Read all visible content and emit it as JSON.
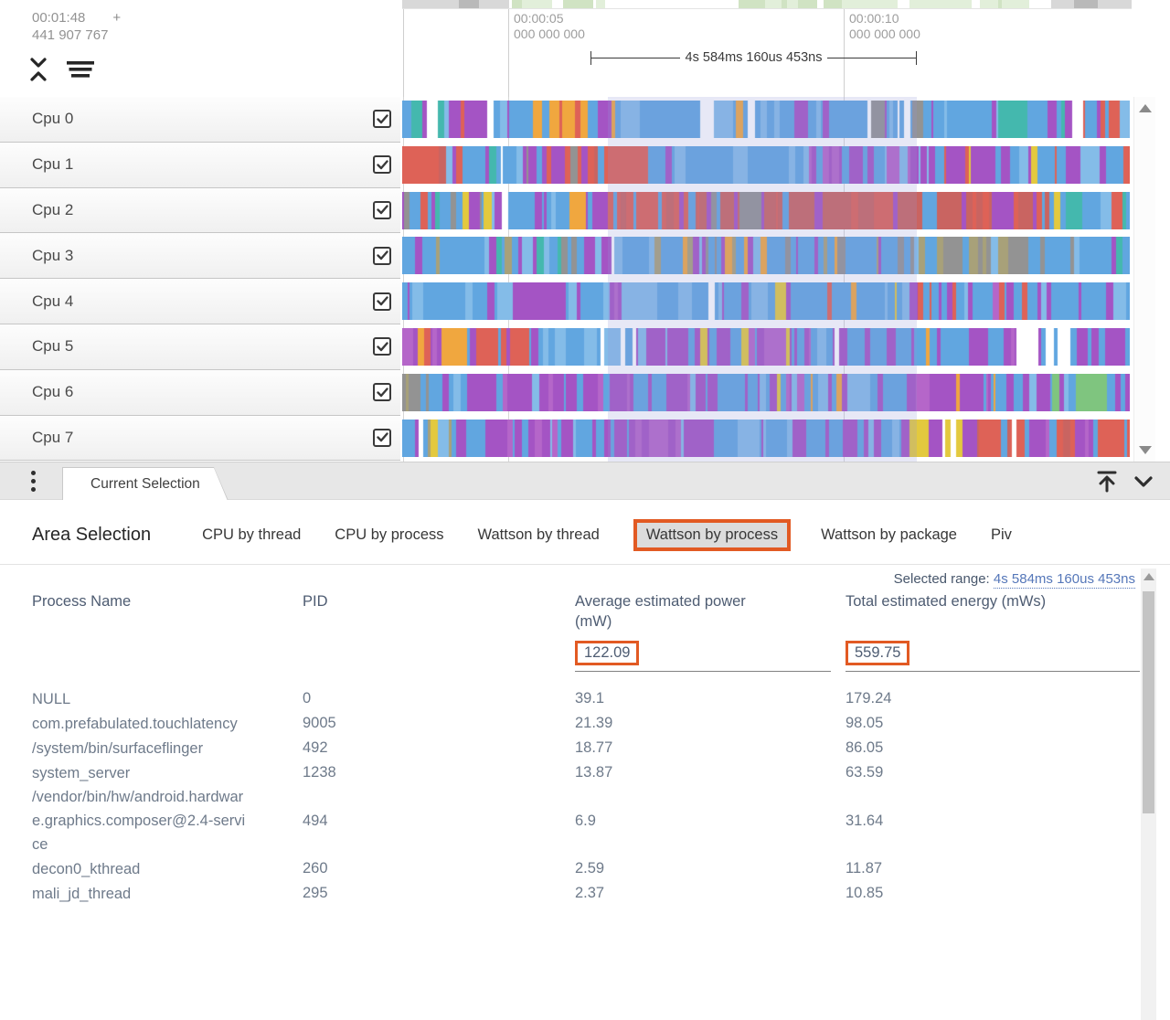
{
  "timeline": {
    "cursor_time": "00:01:48",
    "cursor_plus": "+",
    "cursor_ns": "441 907 767",
    "markers": [
      {
        "time": "00:00:05",
        "ns": "000 000 000"
      },
      {
        "time": "00:00:10",
        "ns": "000 000 000"
      }
    ],
    "measurement": "4s 584ms 160us 453ns"
  },
  "tracks": {
    "rows": [
      {
        "label": "Cpu 0",
        "checked": true
      },
      {
        "label": "Cpu 1",
        "checked": true
      },
      {
        "label": "Cpu 2",
        "checked": true
      },
      {
        "label": "Cpu 3",
        "checked": true
      },
      {
        "label": "Cpu 4",
        "checked": true
      },
      {
        "label": "Cpu 5",
        "checked": true
      },
      {
        "label": "Cpu 6",
        "checked": true
      },
      {
        "label": "Cpu 7",
        "checked": true
      }
    ]
  },
  "tab_bar": {
    "current_tab": "Current Selection"
  },
  "selection_panel": {
    "title": "Area Selection",
    "tabs": [
      {
        "label": "CPU by thread",
        "active": false
      },
      {
        "label": "CPU by process",
        "active": false
      },
      {
        "label": "Wattson by thread",
        "active": false
      },
      {
        "label": "Wattson by process",
        "active": true
      },
      {
        "label": "Wattson by package",
        "active": false
      },
      {
        "label": "Piv",
        "active": false
      }
    ],
    "selected_range_label": "Selected range:",
    "selected_range_value": "4s 584ms 160us 453ns",
    "table": {
      "columns": [
        "Process Name",
        "PID",
        "Average estimated power (mW)",
        "Total estimated energy (mWs)"
      ],
      "summary": {
        "power": "122.09",
        "energy": "559.75"
      },
      "rows": [
        {
          "name": "NULL",
          "pid": "0",
          "power": "39.1",
          "energy": "179.24"
        },
        {
          "name": "com.prefabulated.touchlatency",
          "pid": "9005",
          "power": "21.39",
          "energy": "98.05"
        },
        {
          "name": "/system/bin/surfaceflinger",
          "pid": "492",
          "power": "18.77",
          "energy": "86.05"
        },
        {
          "name": "system_server",
          "pid": "1238",
          "power": "13.87",
          "energy": "63.59"
        },
        {
          "name": "/vendor/bin/hw/android.hardware.graphics.composer@2.4-service",
          "pid": "494",
          "power": "6.9",
          "energy": "31.64"
        },
        {
          "name": "decon0_kthread",
          "pid": "260",
          "power": "2.59",
          "energy": "11.87"
        },
        {
          "name": "mali_jd_thread",
          "pid": "295",
          "power": "2.37",
          "energy": "10.85"
        }
      ]
    }
  },
  "colors": {
    "annotation_orange": "#e25a23",
    "selection_overlay": "rgba(144,150,214,0.22)",
    "link_blue": "#5577b9"
  },
  "track_render": {
    "seed": 20240511,
    "palette": {
      "blue": "#61a6e0",
      "lblue": "#84bce8",
      "purple": "#a454c4",
      "mauve": "#b566c9",
      "red": "#de6257",
      "dred": "#c96461",
      "orange": "#f0a73f",
      "yellow": "#e3c93e",
      "teal": "#44b8ae",
      "green": "#7fc57f",
      "gray": "#939393",
      "olive": "#a8a179",
      "white": "#ffffff"
    },
    "minimap": {
      "grays": [
        [
          0,
          117
        ],
        [
          710,
          798
        ]
      ],
      "dark_patches": [
        [
          62,
          22
        ],
        [
          735,
          26
        ]
      ],
      "green_zone": [
        117,
        710
      ]
    },
    "profiles": [
      [
        [
          0.06,
          {
            "blue": 30,
            "purple": 12,
            "teal": 10,
            "green": 8,
            "red": 8,
            "orange": 6,
            "yellow": 5,
            "gray": 5,
            "white": 4,
            "lblue": 8
          }
        ],
        [
          0.125,
          {
            "purple": 55,
            "blue": 22,
            "red": 6,
            "orange": 5,
            "white": 3
          }
        ],
        [
          0.165,
          {
            "blue": 45,
            "lblue": 15,
            "purple": 10,
            "orange": 8,
            "red": 5,
            "white": 4
          }
        ],
        [
          0.225,
          {
            "orange": 50,
            "blue": 25,
            "yellow": 6,
            "purple": 5,
            "red": 4
          }
        ],
        [
          0.3,
          {
            "blue": 45,
            "orange": 18,
            "purple": 10,
            "red": 6,
            "teal": 4,
            "white": 4
          }
        ],
        [
          0.47,
          {
            "blue": 55,
            "lblue": 12,
            "orange": 9,
            "purple": 7,
            "red": 5,
            "yellow": 4,
            "white": 3
          }
        ],
        [
          0.62,
          {
            "blue": 62,
            "lblue": 14,
            "purple": 8,
            "red": 5,
            "gray": 4,
            "white": 3
          }
        ],
        [
          0.75,
          {
            "blue": 55,
            "lblue": 10,
            "gray": 12,
            "purple": 8,
            "red": 5,
            "white": 3
          }
        ],
        [
          0.88,
          {
            "blue": 58,
            "lblue": 12,
            "purple": 9,
            "red": 6,
            "teal": 4,
            "white": 3
          }
        ],
        [
          1.0,
          {
            "blue": 48,
            "purple": 18,
            "red": 12,
            "lblue": 8,
            "teal": 4,
            "white": 3
          }
        ]
      ],
      [
        [
          0.055,
          {
            "red": 70,
            "dred": 15,
            "blue": 8,
            "purple": 4
          }
        ],
        [
          0.1,
          {
            "blue": 40,
            "red": 15,
            "teal": 8,
            "yellow": 6,
            "purple": 8,
            "lblue": 12,
            "white": 4
          }
        ],
        [
          0.165,
          {
            "blue": 48,
            "lblue": 14,
            "yellow": 6,
            "red": 6,
            "purple": 8,
            "teal": 5,
            "white": 4
          }
        ],
        [
          0.215,
          {
            "purple": 45,
            "blue": 20,
            "gray": 12,
            "red": 5,
            "olive": 6
          }
        ],
        [
          0.24,
          {
            "blue": 35,
            "gray": 20,
            "olive": 12,
            "purple": 10,
            "red": 6
          }
        ],
        [
          0.335,
          {
            "red": 62,
            "dred": 12,
            "blue": 15,
            "purple": 4
          }
        ],
        [
          0.5,
          {
            "blue": 68,
            "lblue": 18,
            "yellow": 3,
            "purple": 4,
            "white": 3
          }
        ],
        [
          0.555,
          {
            "blue": 55,
            "lblue": 15,
            "purple": 15,
            "white": 3
          }
        ],
        [
          0.72,
          {
            "purple": 52,
            "mauve": 12,
            "blue": 22,
            "lblue": 6,
            "red": 3
          }
        ],
        [
          0.86,
          {
            "blue": 48,
            "lblue": 12,
            "purple": 22,
            "red": 5,
            "yellow": 3
          }
        ],
        [
          0.93,
          {
            "blue": 50,
            "red": 18,
            "purple": 10,
            "lblue": 10,
            "yellow": 4
          }
        ],
        [
          1.0,
          {
            "blue": 40,
            "red": 25,
            "purple": 15,
            "lblue": 8,
            "teal": 4
          }
        ]
      ],
      [
        [
          0.13,
          {
            "blue": 42,
            "purple": 18,
            "red": 8,
            "teal": 6,
            "yellow": 5,
            "lblue": 10,
            "gray": 4,
            "white": 4
          }
        ],
        [
          0.25,
          {
            "blue": 45,
            "purple": 15,
            "red": 10,
            "orange": 6,
            "lblue": 10,
            "white": 4
          }
        ],
        [
          0.3,
          {
            "blue": 35,
            "orange": 15,
            "red": 15,
            "purple": 10,
            "lblue": 8
          }
        ],
        [
          0.42,
          {
            "red": 55,
            "dred": 15,
            "blue": 15,
            "purple": 6
          }
        ],
        [
          0.56,
          {
            "dred": 40,
            "red": 25,
            "blue": 15,
            "purple": 8,
            "gray": 4
          }
        ],
        [
          0.7,
          {
            "dred": 45,
            "red": 20,
            "blue": 12,
            "purple": 8,
            "gray": 6
          }
        ],
        [
          0.82,
          {
            "dred": 42,
            "red": 22,
            "blue": 15,
            "purple": 6,
            "yellow": 4
          }
        ],
        [
          0.9,
          {
            "red": 35,
            "dred": 20,
            "blue": 22,
            "purple": 8,
            "yellow": 4
          }
        ],
        [
          1.0,
          {
            "blue": 45,
            "purple": 15,
            "red": 10,
            "teal": 8,
            "lblue": 10,
            "white": 4
          }
        ]
      ],
      [
        [
          0.28,
          {
            "blue": 38,
            "purple": 22,
            "gray": 10,
            "olive": 8,
            "lblue": 10,
            "red": 4,
            "teal": 4,
            "white": 3
          }
        ],
        [
          0.47,
          {
            "blue": 48,
            "purple": 12,
            "olive": 10,
            "gray": 8,
            "orange": 5,
            "lblue": 10,
            "white": 3
          }
        ],
        [
          0.63,
          {
            "blue": 52,
            "lblue": 12,
            "purple": 10,
            "olive": 8,
            "orange": 5,
            "gray": 5,
            "white": 3
          }
        ],
        [
          0.76,
          {
            "blue": 45,
            "gray": 15,
            "olive": 12,
            "purple": 10,
            "lblue": 8
          }
        ],
        [
          0.87,
          {
            "gray": 28,
            "olive": 15,
            "blue": 35,
            "purple": 8,
            "lblue": 6
          }
        ],
        [
          0.97,
          {
            "blue": 48,
            "purple": 18,
            "lblue": 10,
            "gray": 6,
            "red": 4
          }
        ],
        [
          1.0,
          {
            "teal": 30,
            "green": 20,
            "blue": 30,
            "purple": 10
          }
        ]
      ],
      [
        [
          0.09,
          {
            "blue": 55,
            "lblue": 15,
            "purple": 12,
            "red": 5,
            "orange": 4,
            "white": 3
          }
        ],
        [
          0.18,
          {
            "blue": 45,
            "purple": 25,
            "lblue": 10,
            "red": 6,
            "orange": 4
          }
        ],
        [
          0.3,
          {
            "purple": 42,
            "mauve": 10,
            "blue": 32,
            "lblue": 8,
            "white": 3
          }
        ],
        [
          0.5,
          {
            "blue": 55,
            "lblue": 15,
            "purple": 14,
            "orange": 4,
            "yellow": 3,
            "white": 3
          }
        ],
        [
          0.7,
          {
            "blue": 58,
            "lblue": 14,
            "purple": 12,
            "orange": 4,
            "yellow": 3,
            "red": 3
          }
        ],
        [
          0.78,
          {
            "blue": 48,
            "purple": 20,
            "red": 10,
            "lblue": 8
          }
        ],
        [
          0.9,
          {
            "blue": 45,
            "purple": 25,
            "red": 8,
            "mauve": 8,
            "lblue": 6
          }
        ],
        [
          1.0,
          {
            "blue": 58,
            "lblue": 15,
            "purple": 12,
            "teal": 5,
            "white": 3
          }
        ]
      ],
      [
        [
          0.09,
          {
            "purple": 30,
            "red": 22,
            "blue": 25,
            "mauve": 8,
            "orange": 4,
            "lblue": 6
          }
        ],
        [
          0.18,
          {
            "red": 30,
            "purple": 25,
            "blue": 25,
            "yellow": 4,
            "lblue": 8
          }
        ],
        [
          0.27,
          {
            "blue": 62,
            "lblue": 20,
            "purple": 6,
            "white": 5
          }
        ],
        [
          0.32,
          {
            "white": 40,
            "purple": 25,
            "blue": 20,
            "lblue": 8
          }
        ],
        [
          0.45,
          {
            "purple": 48,
            "mauve": 12,
            "blue": 22,
            "yellow": 4,
            "lblue": 6,
            "white": 4
          }
        ],
        [
          0.56,
          {
            "purple": 42,
            "blue": 30,
            "mauve": 8,
            "yellow": 4,
            "lblue": 8
          }
        ],
        [
          0.7,
          {
            "blue": 42,
            "purple": 35,
            "lblue": 8,
            "yellow": 3,
            "white": 3
          }
        ],
        [
          0.82,
          {
            "blue": 45,
            "purple": 30,
            "lblue": 10,
            "orange": 3
          }
        ],
        [
          0.88,
          {
            "purple": 52,
            "mauve": 10,
            "blue": 18,
            "yellow": 5,
            "white": 5
          }
        ],
        [
          0.92,
          {
            "white": 35,
            "blue": 30,
            "purple": 20,
            "lblue": 8
          }
        ],
        [
          1.0,
          {
            "purple": 48,
            "blue": 30,
            "mauve": 10,
            "lblue": 6
          }
        ]
      ],
      [
        [
          0.035,
          {
            "gray": 60,
            "olive": 15,
            "blue": 15,
            "purple": 5
          }
        ],
        [
          0.15,
          {
            "blue": 35,
            "purple": 35,
            "lblue": 8,
            "mauve": 8,
            "red": 4,
            "teal": 3
          }
        ],
        [
          0.33,
          {
            "purple": 58,
            "mauve": 14,
            "blue": 18,
            "lblue": 4
          }
        ],
        [
          0.55,
          {
            "purple": 48,
            "mauve": 10,
            "blue": 28,
            "lblue": 6,
            "yellow": 3
          }
        ],
        [
          0.7,
          {
            "blue": 48,
            "purple": 25,
            "lblue": 10,
            "orange": 5,
            "yellow": 3
          }
        ],
        [
          0.88,
          {
            "purple": 52,
            "mauve": 10,
            "blue": 24,
            "lblue": 6,
            "orange": 3
          }
        ],
        [
          0.95,
          {
            "blue": 38,
            "teal": 14,
            "green": 10,
            "purple": 22,
            "lblue": 8
          }
        ],
        [
          1.0,
          {
            "blue": 50,
            "purple": 28,
            "lblue": 10,
            "teal": 5
          }
        ]
      ],
      [
        [
          0.1,
          {
            "blue": 45,
            "yellow": 8,
            "olive": 8,
            "purple": 18,
            "lblue": 10,
            "red": 4,
            "white": 4
          }
        ],
        [
          0.22,
          {
            "purple": 45,
            "mauve": 10,
            "blue": 28,
            "lblue": 6,
            "white": 4
          }
        ],
        [
          0.3,
          {
            "blue": 42,
            "purple": 28,
            "white": 8,
            "lblue": 8,
            "yellow": 4
          }
        ],
        [
          0.42,
          {
            "purple": 50,
            "mauve": 12,
            "blue": 25,
            "lblue": 5
          }
        ],
        [
          0.55,
          {
            "blue": 48,
            "purple": 30,
            "lblue": 8,
            "yellow": 3,
            "white": 3
          }
        ],
        [
          0.68,
          {
            "purple": 45,
            "blue": 35,
            "mauve": 8,
            "lblue": 5
          }
        ],
        [
          0.73,
          {
            "white": 25,
            "blue": 30,
            "purple": 25,
            "yellow": 8
          }
        ],
        [
          0.78,
          {
            "white": 35,
            "yellow": 15,
            "purple": 18,
            "blue": 18,
            "olive": 5
          }
        ],
        [
          1.0,
          {
            "red": 50,
            "dred": 12,
            "purple": 15,
            "blue": 12,
            "mauve": 5,
            "white": 3
          }
        ]
      ]
    ]
  }
}
